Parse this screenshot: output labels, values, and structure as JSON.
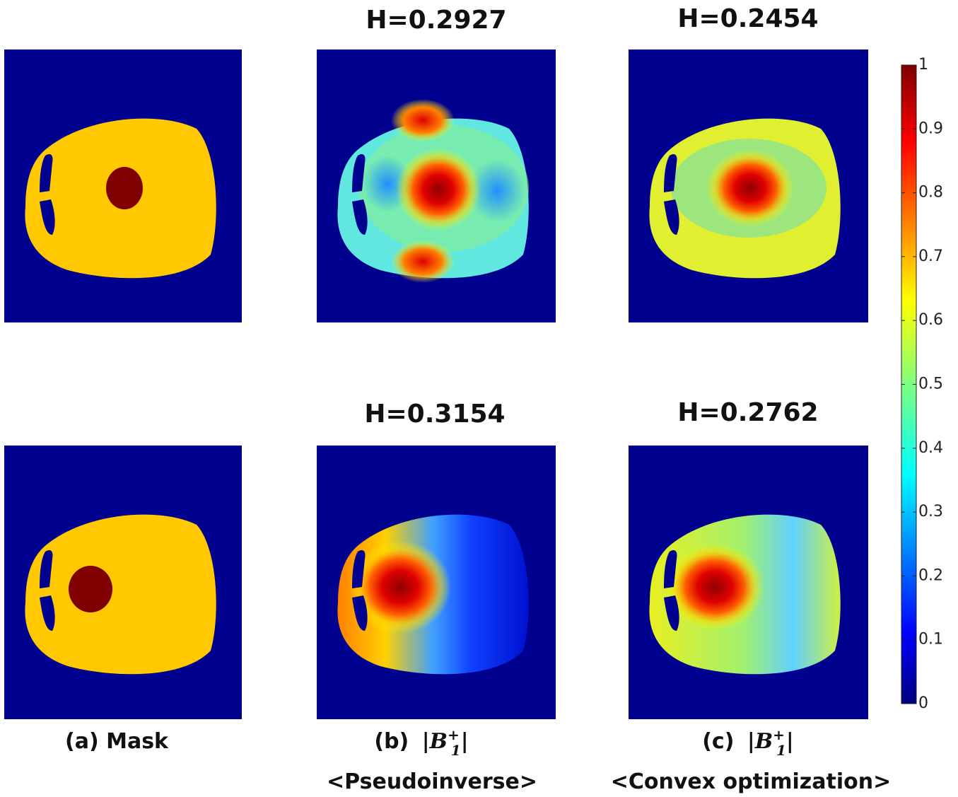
{
  "panels": [
    {
      "title": null
    },
    {
      "title": "H=0.2927"
    },
    {
      "title": "H=0.2454"
    },
    {
      "title": null
    },
    {
      "title": "H=0.3154"
    },
    {
      "title": "H=0.2762"
    }
  ],
  "captions": [
    {
      "label": "(a) Mask"
    },
    {
      "label": "(b)",
      "bar": "|",
      "symbol": "B",
      "sub": "1",
      "sup": "+",
      "method": "<Pseudoinverse>"
    },
    {
      "label": "(c)",
      "bar": "|",
      "symbol": "B",
      "sub": "1",
      "sup": "+",
      "method": "<Convex optimization>"
    }
  ],
  "colorbar": {
    "lim": [
      0,
      1
    ],
    "ticks": [
      0,
      0.1,
      0.2,
      0.3,
      0.4,
      0.5,
      0.6,
      0.7,
      0.8,
      0.9,
      1
    ]
  }
}
